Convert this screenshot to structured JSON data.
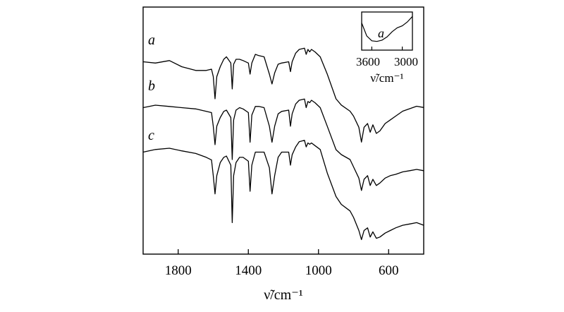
{
  "chart_data": {
    "type": "line",
    "xlabel": "ν̃/cm⁻¹",
    "xlim": [
      2000,
      400
    ],
    "x_reversed": true,
    "x_ticks": [
      1800,
      1400,
      1000,
      600
    ],
    "x_tick_labels": [
      "1800",
      "1400",
      "1000",
      "600"
    ],
    "ylabel": "",
    "y_ticks_shown": false,
    "grid": false,
    "series": [
      {
        "name": "a",
        "points": [
          [
            2000,
            0.7
          ],
          [
            1930,
            0.69
          ],
          [
            1850,
            0.71
          ],
          [
            1780,
            0.66
          ],
          [
            1700,
            0.63
          ],
          [
            1640,
            0.63
          ],
          [
            1610,
            0.64
          ],
          [
            1600,
            0.58
          ],
          [
            1590,
            0.4
          ],
          [
            1580,
            0.58
          ],
          [
            1560,
            0.66
          ],
          [
            1540,
            0.72
          ],
          [
            1525,
            0.74
          ],
          [
            1500,
            0.69
          ],
          [
            1492,
            0.48
          ],
          [
            1484,
            0.68
          ],
          [
            1470,
            0.72
          ],
          [
            1450,
            0.72
          ],
          [
            1430,
            0.71
          ],
          [
            1400,
            0.69
          ],
          [
            1390,
            0.6
          ],
          [
            1380,
            0.69
          ],
          [
            1360,
            0.76
          ],
          [
            1340,
            0.75
          ],
          [
            1310,
            0.74
          ],
          [
            1280,
            0.6
          ],
          [
            1265,
            0.52
          ],
          [
            1250,
            0.61
          ],
          [
            1230,
            0.68
          ],
          [
            1210,
            0.69
          ],
          [
            1170,
            0.7
          ],
          [
            1160,
            0.62
          ],
          [
            1150,
            0.7
          ],
          [
            1130,
            0.77
          ],
          [
            1110,
            0.8
          ],
          [
            1080,
            0.81
          ],
          [
            1070,
            0.76
          ],
          [
            1060,
            0.8
          ],
          [
            1050,
            0.78
          ],
          [
            1040,
            0.8
          ],
          [
            1020,
            0.78
          ],
          [
            990,
            0.74
          ],
          [
            950,
            0.6
          ],
          [
            900,
            0.4
          ],
          [
            870,
            0.35
          ],
          [
            820,
            0.3
          ],
          [
            800,
            0.26
          ],
          [
            770,
            0.17
          ],
          [
            755,
            0.05
          ],
          [
            740,
            0.17
          ],
          [
            720,
            0.2
          ],
          [
            705,
            0.13
          ],
          [
            690,
            0.19
          ],
          [
            670,
            0.12
          ],
          [
            650,
            0.14
          ],
          [
            620,
            0.2
          ],
          [
            590,
            0.23
          ],
          [
            560,
            0.26
          ],
          [
            520,
            0.3
          ],
          [
            480,
            0.32
          ],
          [
            440,
            0.34
          ],
          [
            400,
            0.33
          ]
        ]
      },
      {
        "name": "b",
        "points": [
          [
            2000,
            0.7
          ],
          [
            1930,
            0.72
          ],
          [
            1850,
            0.71
          ],
          [
            1780,
            0.7
          ],
          [
            1700,
            0.69
          ],
          [
            1640,
            0.67
          ],
          [
            1610,
            0.66
          ],
          [
            1600,
            0.55
          ],
          [
            1590,
            0.4
          ],
          [
            1580,
            0.55
          ],
          [
            1560,
            0.62
          ],
          [
            1540,
            0.67
          ],
          [
            1525,
            0.68
          ],
          [
            1500,
            0.62
          ],
          [
            1492,
            0.28
          ],
          [
            1484,
            0.6
          ],
          [
            1470,
            0.68
          ],
          [
            1450,
            0.7
          ],
          [
            1430,
            0.69
          ],
          [
            1400,
            0.66
          ],
          [
            1390,
            0.42
          ],
          [
            1380,
            0.64
          ],
          [
            1360,
            0.71
          ],
          [
            1340,
            0.71
          ],
          [
            1310,
            0.7
          ],
          [
            1280,
            0.55
          ],
          [
            1265,
            0.42
          ],
          [
            1250,
            0.55
          ],
          [
            1230,
            0.65
          ],
          [
            1210,
            0.67
          ],
          [
            1170,
            0.68
          ],
          [
            1160,
            0.55
          ],
          [
            1150,
            0.65
          ],
          [
            1130,
            0.73
          ],
          [
            1110,
            0.76
          ],
          [
            1080,
            0.77
          ],
          [
            1070,
            0.7
          ],
          [
            1060,
            0.75
          ],
          [
            1050,
            0.74
          ],
          [
            1040,
            0.76
          ],
          [
            1020,
            0.74
          ],
          [
            990,
            0.7
          ],
          [
            950,
            0.55
          ],
          [
            900,
            0.36
          ],
          [
            870,
            0.32
          ],
          [
            820,
            0.28
          ],
          [
            800,
            0.22
          ],
          [
            770,
            0.13
          ],
          [
            755,
            0.03
          ],
          [
            740,
            0.12
          ],
          [
            720,
            0.15
          ],
          [
            705,
            0.07
          ],
          [
            690,
            0.12
          ],
          [
            670,
            0.07
          ],
          [
            650,
            0.09
          ],
          [
            620,
            0.13
          ],
          [
            590,
            0.15
          ],
          [
            560,
            0.16
          ],
          [
            520,
            0.18
          ],
          [
            480,
            0.19
          ],
          [
            440,
            0.2
          ],
          [
            400,
            0.19
          ]
        ]
      },
      {
        "name": "c",
        "points": [
          [
            2000,
            0.7
          ],
          [
            1930,
            0.72
          ],
          [
            1850,
            0.73
          ],
          [
            1780,
            0.71
          ],
          [
            1700,
            0.69
          ],
          [
            1640,
            0.66
          ],
          [
            1610,
            0.64
          ],
          [
            1600,
            0.52
          ],
          [
            1590,
            0.38
          ],
          [
            1580,
            0.52
          ],
          [
            1560,
            0.62
          ],
          [
            1540,
            0.66
          ],
          [
            1525,
            0.67
          ],
          [
            1500,
            0.6
          ],
          [
            1492,
            0.16
          ],
          [
            1484,
            0.52
          ],
          [
            1470,
            0.62
          ],
          [
            1450,
            0.66
          ],
          [
            1430,
            0.66
          ],
          [
            1400,
            0.63
          ],
          [
            1390,
            0.4
          ],
          [
            1380,
            0.6
          ],
          [
            1360,
            0.7
          ],
          [
            1340,
            0.7
          ],
          [
            1310,
            0.7
          ],
          [
            1280,
            0.58
          ],
          [
            1265,
            0.38
          ],
          [
            1250,
            0.52
          ],
          [
            1230,
            0.66
          ],
          [
            1210,
            0.7
          ],
          [
            1170,
            0.7
          ],
          [
            1160,
            0.6
          ],
          [
            1150,
            0.68
          ],
          [
            1130,
            0.74
          ],
          [
            1110,
            0.78
          ],
          [
            1080,
            0.79
          ],
          [
            1070,
            0.74
          ],
          [
            1060,
            0.77
          ],
          [
            1050,
            0.76
          ],
          [
            1040,
            0.77
          ],
          [
            1020,
            0.75
          ],
          [
            990,
            0.72
          ],
          [
            950,
            0.54
          ],
          [
            900,
            0.36
          ],
          [
            870,
            0.3
          ],
          [
            820,
            0.25
          ],
          [
            800,
            0.2
          ],
          [
            770,
            0.1
          ],
          [
            755,
            0.03
          ],
          [
            740,
            0.1
          ],
          [
            720,
            0.12
          ],
          [
            705,
            0.05
          ],
          [
            690,
            0.09
          ],
          [
            670,
            0.04
          ],
          [
            650,
            0.05
          ],
          [
            620,
            0.08
          ],
          [
            590,
            0.1
          ],
          [
            560,
            0.12
          ],
          [
            520,
            0.14
          ],
          [
            480,
            0.15
          ],
          [
            440,
            0.16
          ],
          [
            400,
            0.14
          ]
        ]
      }
    ],
    "inset": {
      "series_label": "a",
      "xlim": [
        3800,
        2800
      ],
      "x_reversed": true,
      "x_tick_labels": [
        "3600",
        "3000"
      ],
      "xlabel": "ν̃/cm⁻¹",
      "points": [
        [
          3800,
          0.75
        ],
        [
          3700,
          0.35
        ],
        [
          3600,
          0.2
        ],
        [
          3500,
          0.18
        ],
        [
          3400,
          0.22
        ],
        [
          3300,
          0.32
        ],
        [
          3200,
          0.48
        ],
        [
          3100,
          0.6
        ],
        [
          3000,
          0.66
        ],
        [
          2900,
          0.78
        ],
        [
          2800,
          0.95
        ]
      ]
    }
  }
}
